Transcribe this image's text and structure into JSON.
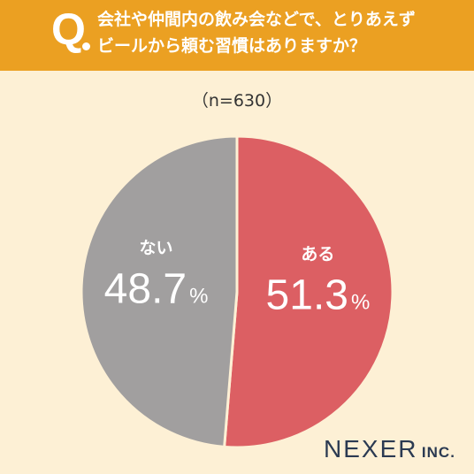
{
  "question": {
    "mark": "Q",
    "line1": "会社や仲間内の飲み会などで、とりあえず",
    "line2": "ビールから頼む習慣はありますか？"
  },
  "sample_size": "（n=630）",
  "brand": {
    "name": "NEXER",
    "suffix": "INC."
  },
  "colors": {
    "header": "#eba022",
    "background": "#fdf0d5",
    "yes": "#dc5f63",
    "no": "#a19f9f"
  },
  "chart_data": {
    "type": "pie",
    "start": "12 o'clock",
    "direction": "clockwise",
    "slices": [
      {
        "label": "ある",
        "value": 51.3,
        "display": "51.3",
        "unit": "%"
      },
      {
        "label": "ない",
        "value": 48.7,
        "display": "48.7",
        "unit": "%"
      }
    ]
  }
}
